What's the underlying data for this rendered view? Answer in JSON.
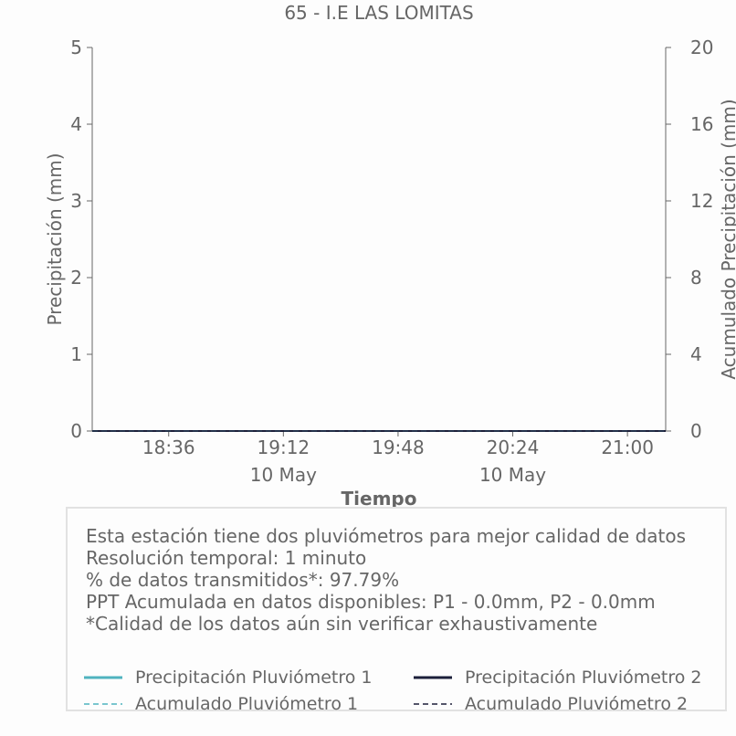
{
  "chart_data": {
    "type": "line",
    "title": "65 - I.E LAS LOMITAS",
    "xlabel": "Tiempo",
    "ylabel": "Precipitación (mm)",
    "y2label": "Acumulado Precipitación (mm)",
    "ylim": [
      0,
      5
    ],
    "y2lim": [
      0,
      20
    ],
    "yticks": [
      "0",
      "1",
      "2",
      "3",
      "4",
      "5"
    ],
    "y2ticks": [
      "0",
      "4",
      "8",
      "12",
      "16",
      "20"
    ],
    "x_range": [
      "18:12",
      "21:12"
    ],
    "xticks": [
      {
        "time": "18:36",
        "date": ""
      },
      {
        "time": "19:12",
        "date": "10 May"
      },
      {
        "time": "19:48",
        "date": ""
      },
      {
        "time": "20:24",
        "date": "10 May"
      },
      {
        "time": "21:00",
        "date": ""
      }
    ],
    "grid": false,
    "series": [
      {
        "name": "Precipitación Pluviómetro 1",
        "axis": "left",
        "style": "solid",
        "color": "#4fb3bf",
        "x": [
          "18:12",
          "21:12"
        ],
        "values": [
          0,
          0
        ]
      },
      {
        "name": "Precipitación Pluviómetro 2",
        "axis": "left",
        "style": "solid",
        "color": "#1c1f3a",
        "x": [
          "18:12",
          "21:12"
        ],
        "values": [
          0,
          0
        ]
      },
      {
        "name": "Acumulado Pluviómetro 1",
        "axis": "right",
        "style": "dashed",
        "color": "#4fb3bf",
        "x": [
          "18:12",
          "21:12"
        ],
        "values": [
          0,
          0
        ]
      },
      {
        "name": "Acumulado Pluviómetro 2",
        "axis": "right",
        "style": "dashed",
        "color": "#1c1f3a",
        "x": [
          "18:12",
          "21:12"
        ],
        "values": [
          0,
          0
        ]
      }
    ]
  },
  "info": {
    "lines": [
      "Esta estación tiene dos pluviómetros para mejor calidad de datos",
      "Resolución temporal: 1 minuto",
      "% de datos transmitidos*: 97.79%",
      "PPT Acumulada en datos disponibles: P1 - 0.0mm, P2 - 0.0mm",
      "*Calidad de los datos aún sin verificar exhaustivamente"
    ]
  },
  "colors": {
    "text": "#666666",
    "axis": "#666666",
    "p1": "#4fb3bf",
    "p2": "#1c1f3a"
  }
}
